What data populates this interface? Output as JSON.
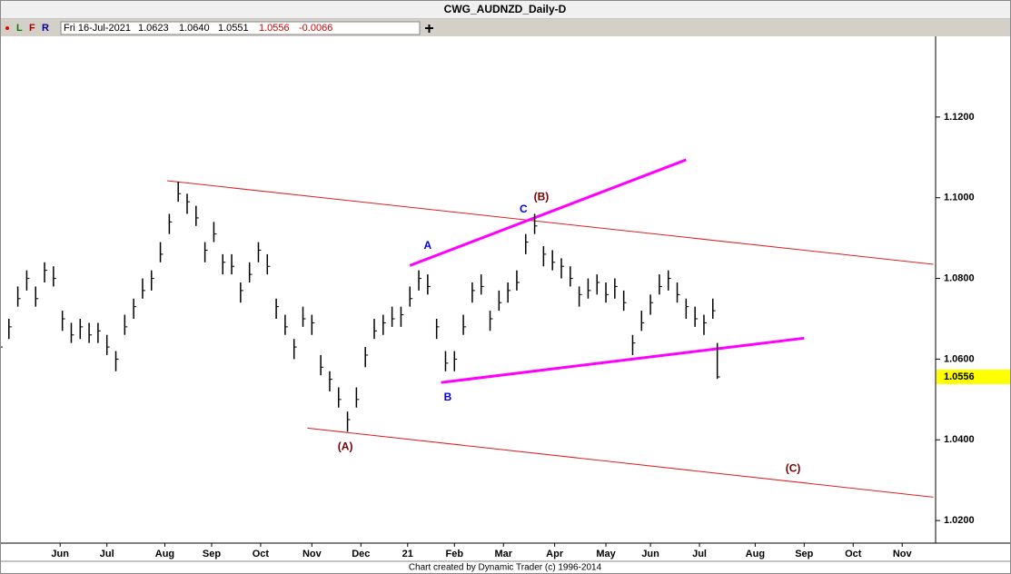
{
  "chart_data": {
    "type": "ohlc",
    "title": "CWG_AUDNZD_Daily-D",
    "toolbar": {
      "buttons": [
        "L",
        "F",
        "R"
      ],
      "date": "Fri 16-Jul-2021",
      "open": "1.0623",
      "high": "1.0640",
      "low": "1.0551",
      "close": "1.0556",
      "change": "-0.0066"
    },
    "footer": "Chart created by Dynamic Trader  (c) 1996-2014",
    "color": "#000000",
    "x": [
      0,
      4,
      8,
      12,
      16,
      20,
      24,
      28,
      32,
      36,
      40,
      44,
      48,
      52,
      56,
      60,
      64,
      68,
      72,
      76,
      80,
      84,
      88,
      92,
      96,
      100,
      104,
      108,
      112,
      116,
      120,
      124,
      128,
      132,
      136,
      140,
      144,
      148,
      152,
      156,
      160,
      164,
      168,
      172,
      176,
      180,
      184,
      188,
      192,
      196,
      200,
      204,
      208,
      212,
      216,
      220,
      224,
      228,
      232,
      236,
      240,
      244,
      248,
      252,
      256,
      260,
      264,
      268,
      272,
      276,
      280,
      284,
      288,
      292,
      296,
      300,
      304,
      308,
      312,
      316,
      320,
      322
    ],
    "high": [
      1.066,
      1.07,
      1.078,
      1.082,
      1.078,
      1.084,
      1.083,
      1.072,
      1.069,
      1.07,
      1.069,
      1.069,
      1.066,
      1.062,
      1.071,
      1.075,
      1.08,
      1.082,
      1.089,
      1.096,
      1.104,
      1.101,
      1.098,
      1.089,
      1.094,
      1.086,
      1.086,
      1.079,
      1.084,
      1.089,
      1.086,
      1.075,
      1.071,
      1.065,
      1.073,
      1.071,
      1.061,
      1.057,
      1.053,
      1.047,
      1.053,
      1.063,
      1.07,
      1.071,
      1.073,
      1.073,
      1.078,
      1.082,
      1.081,
      1.07,
      1.062,
      1.062,
      1.071,
      1.079,
      1.081,
      1.072,
      1.077,
      1.079,
      1.082,
      1.091,
      1.096,
      1.088,
      1.087,
      1.085,
      1.083,
      1.078,
      1.08,
      1.081,
      1.079,
      1.08,
      1.077,
      1.066,
      1.072,
      1.076,
      1.081,
      1.082,
      1.079,
      1.075,
      1.073,
      1.071,
      1.075,
      1.064
    ],
    "low": [
      1.061,
      1.065,
      1.073,
      1.077,
      1.073,
      1.079,
      1.078,
      1.067,
      1.064,
      1.065,
      1.064,
      1.064,
      1.061,
      1.057,
      1.066,
      1.07,
      1.075,
      1.077,
      1.084,
      1.091,
      1.099,
      1.096,
      1.093,
      1.084,
      1.089,
      1.081,
      1.081,
      1.074,
      1.079,
      1.084,
      1.081,
      1.07,
      1.066,
      1.06,
      1.068,
      1.066,
      1.056,
      1.052,
      1.048,
      1.042,
      1.048,
      1.058,
      1.065,
      1.066,
      1.068,
      1.068,
      1.073,
      1.077,
      1.076,
      1.065,
      1.057,
      1.057,
      1.066,
      1.074,
      1.076,
      1.067,
      1.072,
      1.074,
      1.077,
      1.086,
      1.091,
      1.083,
      1.082,
      1.08,
      1.078,
      1.073,
      1.075,
      1.076,
      1.074,
      1.075,
      1.072,
      1.061,
      1.067,
      1.071,
      1.076,
      1.077,
      1.074,
      1.07,
      1.068,
      1.066,
      1.07,
      1.0551
    ],
    "close": [
      1.063,
      1.068,
      1.075,
      1.08,
      1.075,
      1.082,
      1.08,
      1.07,
      1.066,
      1.068,
      1.066,
      1.067,
      1.063,
      1.06,
      1.068,
      1.073,
      1.077,
      1.08,
      1.086,
      1.094,
      1.101,
      1.099,
      1.095,
      1.087,
      1.091,
      1.084,
      1.083,
      1.077,
      1.081,
      1.087,
      1.083,
      1.073,
      1.068,
      1.063,
      1.07,
      1.069,
      1.058,
      1.055,
      1.05,
      1.045,
      1.05,
      1.061,
      1.067,
      1.069,
      1.07,
      1.071,
      1.075,
      1.08,
      1.078,
      1.068,
      1.059,
      1.06,
      1.068,
      1.077,
      1.078,
      1.07,
      1.074,
      1.077,
      1.079,
      1.089,
      1.093,
      1.086,
      1.084,
      1.083,
      1.08,
      1.076,
      1.077,
      1.079,
      1.076,
      1.078,
      1.074,
      1.064,
      1.069,
      1.074,
      1.078,
      1.08,
      1.076,
      1.073,
      1.07,
      1.069,
      1.072,
      1.0556
    ],
    "xlim": [
      0,
      420
    ],
    "ylim": [
      1.0144,
      1.14
    ],
    "xticks": [
      {
        "value": 27,
        "label": "Jun"
      },
      {
        "value": 48,
        "label": "Jul"
      },
      {
        "value": 74,
        "label": "Aug"
      },
      {
        "value": 95,
        "label": "Sep"
      },
      {
        "value": 117,
        "label": "Oct"
      },
      {
        "value": 140,
        "label": "Nov"
      },
      {
        "value": 162,
        "label": "Dec"
      },
      {
        "value": 183,
        "label": "21"
      },
      {
        "value": 204,
        "label": "Feb"
      },
      {
        "value": 226,
        "label": "Mar"
      },
      {
        "value": 249,
        "label": "Apr"
      },
      {
        "value": 272,
        "label": "May"
      },
      {
        "value": 292,
        "label": "Jun"
      },
      {
        "value": 314,
        "label": "Jul"
      },
      {
        "value": 339,
        "label": "Aug"
      },
      {
        "value": 361,
        "label": "Sep"
      },
      {
        "value": 383,
        "label": "Oct"
      },
      {
        "value": 405,
        "label": "Nov"
      }
    ],
    "yticks": [
      {
        "value": 1.02,
        "label": "1.0200"
      },
      {
        "value": 1.04,
        "label": "1.0400"
      },
      {
        "value": 1.06,
        "label": "1.0600"
      },
      {
        "value": 1.08,
        "label": "1.0800"
      },
      {
        "value": 1.1,
        "label": "1.1000"
      },
      {
        "value": 1.12,
        "label": "1.1200"
      }
    ],
    "last_price": {
      "value": 1.0556,
      "label": "1.0556",
      "color": "#ffff00"
    },
    "lines": [
      {
        "x": [
          75,
          419
        ],
        "y": [
          1.1042,
          1.0835
        ],
        "color": "#e02020"
      },
      {
        "x": [
          138,
          419
        ],
        "y": [
          1.0429,
          1.0258
        ],
        "color": "#e02020"
      },
      {
        "x": [
          184,
          308
        ],
        "y": [
          1.0832,
          1.1094
        ],
        "color": "#ff00ff"
      },
      {
        "x": [
          198,
          361
        ],
        "y": [
          1.0542,
          1.0652
        ],
        "color": "#ff00ff"
      }
    ],
    "annotations": [
      {
        "text": "(A)",
        "x": 155,
        "y": 1.0382,
        "color": "#7a0000"
      },
      {
        "text": "(B)",
        "x": 243,
        "y": 1.1001,
        "color": "#7a0000"
      },
      {
        "text": "(C)",
        "x": 356,
        "y": 1.0328,
        "color": "#7a0000"
      },
      {
        "text": "A",
        "x": 192,
        "y": 1.088,
        "color": "#0000e0"
      },
      {
        "text": "B",
        "x": 201,
        "y": 1.0504,
        "color": "#0000e0"
      },
      {
        "text": "C",
        "x": 235,
        "y": 1.097,
        "color": "#0000e0"
      }
    ]
  }
}
